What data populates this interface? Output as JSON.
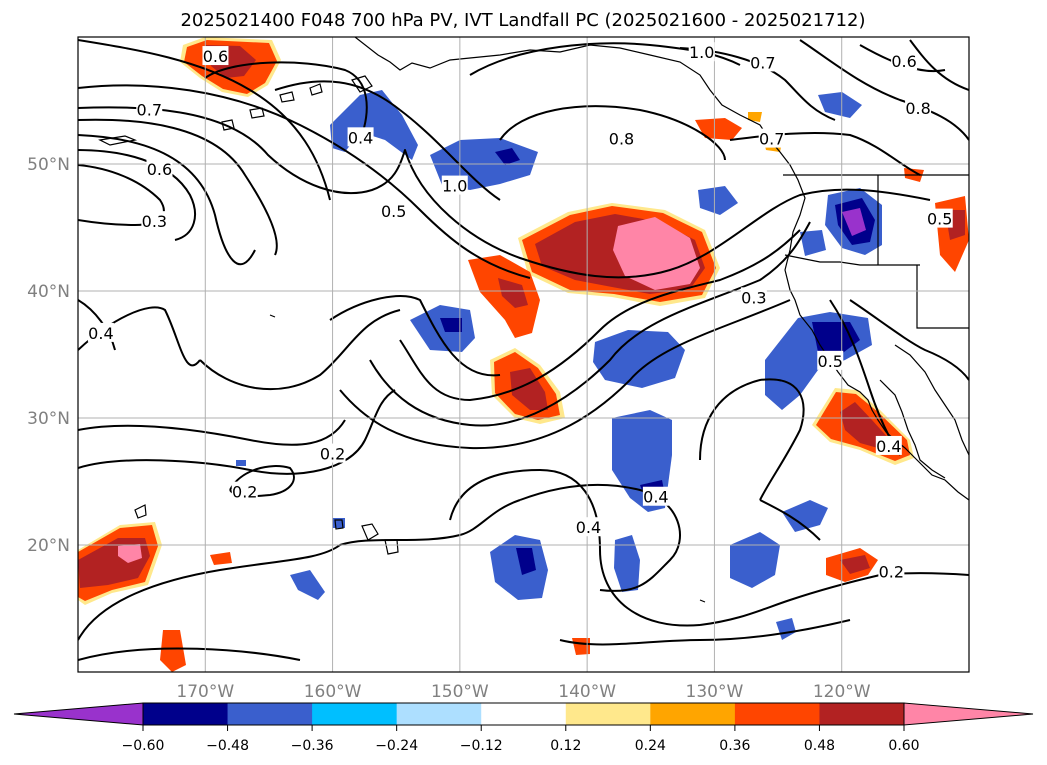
{
  "title": "2025021400 F048 700 hPa PV, IVT Landfall PC (2025021600 - 2025021712)",
  "map": {
    "lon_range": [
      -180,
      -110
    ],
    "lat_range": [
      10,
      60
    ],
    "lat_ticks": [
      {
        "lat": 20,
        "label": "20°N"
      },
      {
        "lat": 30,
        "label": "30°N"
      },
      {
        "lat": 40,
        "label": "40°N"
      },
      {
        "lat": 50,
        "label": "50°N"
      }
    ],
    "lon_ticks": [
      {
        "lon": -170,
        "label": "170°W"
      },
      {
        "lon": -160,
        "label": "160°W"
      },
      {
        "lon": -150,
        "label": "150°W"
      },
      {
        "lon": -140,
        "label": "140°W"
      },
      {
        "lon": -130,
        "label": "130°W"
      },
      {
        "lon": -120,
        "label": "120°W"
      }
    ],
    "gridlines": true
  },
  "colorbar": {
    "extend": "both",
    "bins": [
      "#9932CC",
      "#00008B",
      "#3A5FCD",
      "#00BFFF",
      "#ADDFFF",
      "#FFFFFF",
      "#FFE88C",
      "#FFA500",
      "#FF4500",
      "#B22222",
      "#FF85A7",
      "#FF85A7"
    ],
    "low_extend_color": "#9932CC",
    "high_extend_color": "#FF85A7",
    "ticks": [
      "−0.60",
      "−0.48",
      "−0.36",
      "−0.24",
      "−0.12",
      "0.12",
      "0.24",
      "0.36",
      "0.48",
      "0.60"
    ]
  },
  "contour_labels": [
    {
      "text": "0.6",
      "lon": -169.2,
      "lat": 58.5
    },
    {
      "text": "0.7",
      "lon": -174.4,
      "lat": 54.3
    },
    {
      "text": "0.6",
      "lon": -173.6,
      "lat": 49.6
    },
    {
      "text": "0.3",
      "lon": -174.0,
      "lat": 45.5
    },
    {
      "text": "0.4",
      "lon": -178.2,
      "lat": 36.7
    },
    {
      "text": "0.4",
      "lon": -157.8,
      "lat": 52.1
    },
    {
      "text": "0.5",
      "lon": -155.2,
      "lat": 46.3
    },
    {
      "text": "1.0",
      "lon": -150.4,
      "lat": 48.3
    },
    {
      "text": "0.8",
      "lon": -137.3,
      "lat": 52.0
    },
    {
      "text": "1.0",
      "lon": -131.0,
      "lat": 58.8
    },
    {
      "text": "0.7",
      "lon": -126.2,
      "lat": 58.0
    },
    {
      "text": "0.6",
      "lon": -115.1,
      "lat": 58.1
    },
    {
      "text": "0.8",
      "lon": -114.0,
      "lat": 54.4
    },
    {
      "text": "0.7",
      "lon": -125.5,
      "lat": 52.0
    },
    {
      "text": "0.5",
      "lon": -112.3,
      "lat": 45.7
    },
    {
      "text": "0.3",
      "lon": -126.9,
      "lat": 39.5
    },
    {
      "text": "0.5",
      "lon": -120.9,
      "lat": 34.5
    },
    {
      "text": "0.4",
      "lon": -116.3,
      "lat": 27.8
    },
    {
      "text": "0.2",
      "lon": -160.0,
      "lat": 27.2
    },
    {
      "text": "0.2",
      "lon": -166.9,
      "lat": 24.2
    },
    {
      "text": "0.4",
      "lon": -139.9,
      "lat": 21.4
    },
    {
      "text": "0.4",
      "lon": -134.6,
      "lat": 23.8
    },
    {
      "text": "0.2",
      "lon": -116.1,
      "lat": 17.9
    }
  ]
}
